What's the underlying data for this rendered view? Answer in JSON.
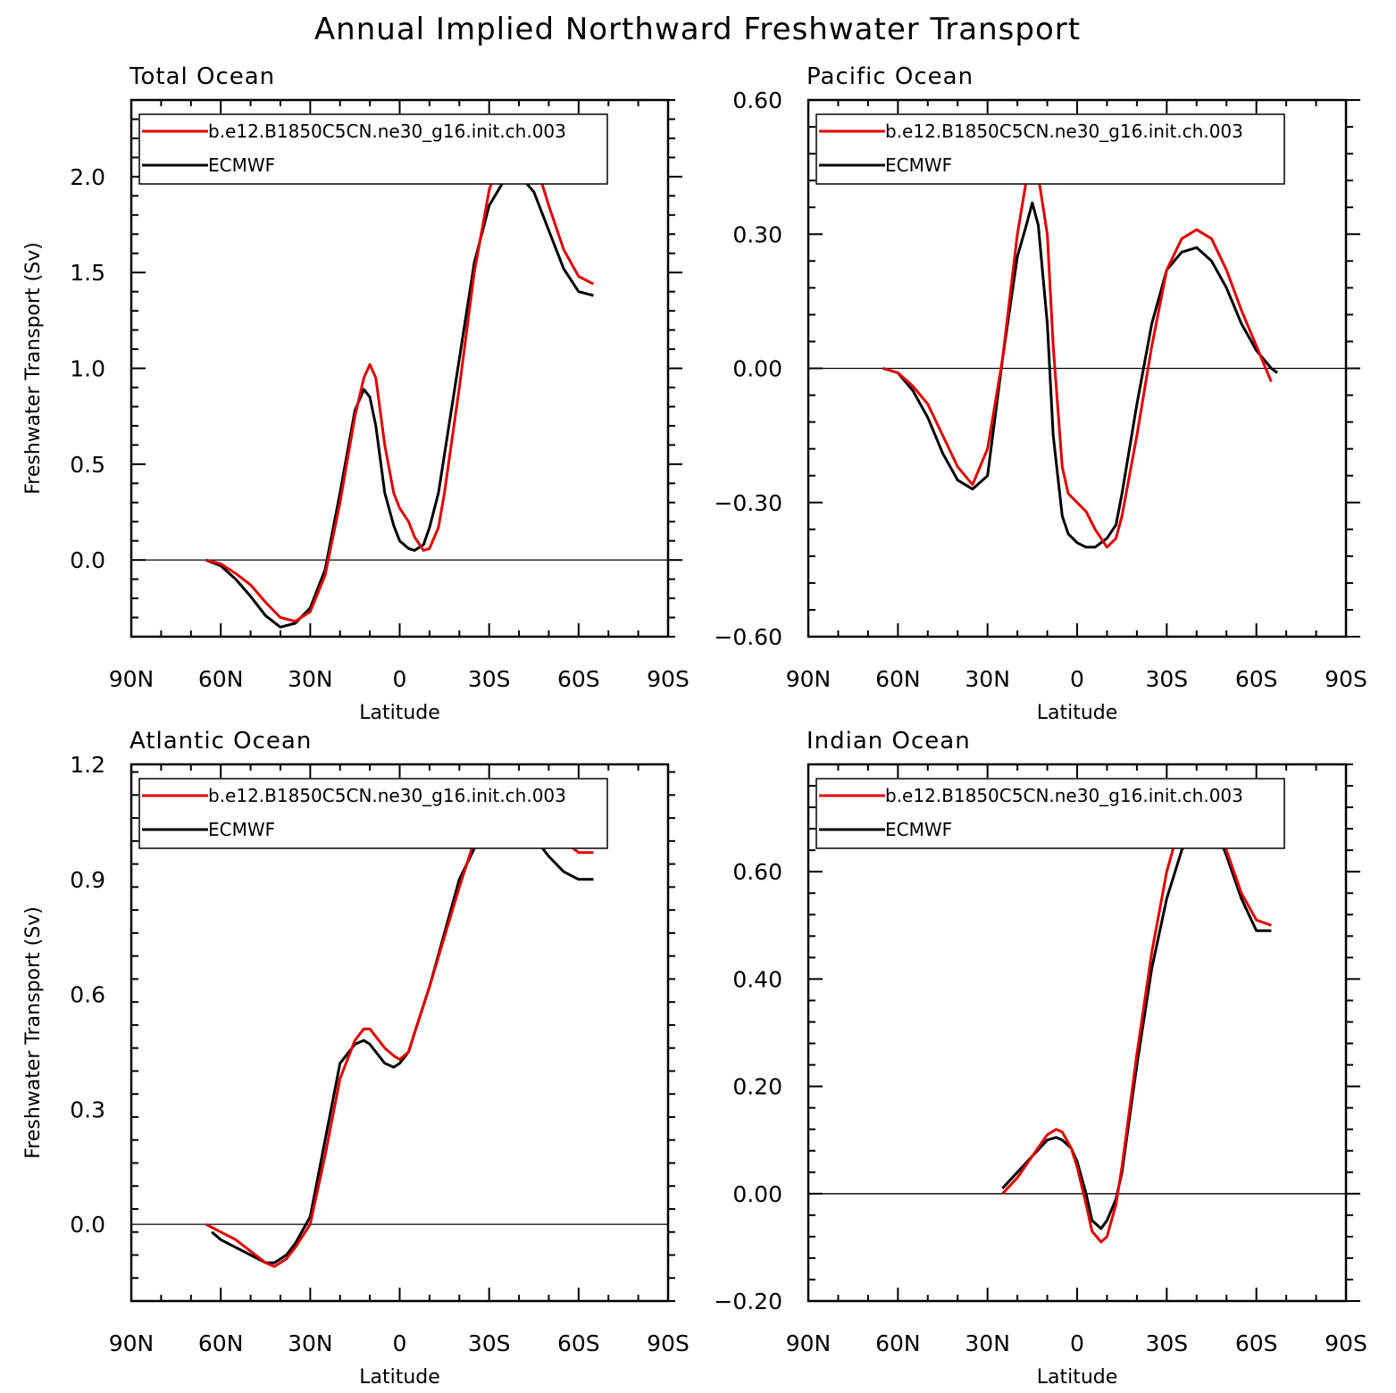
{
  "title": "Annual Implied Northward Freshwater Transport",
  "colors": {
    "model": "#e00000",
    "obs": "#000000"
  },
  "chart_data": [
    {
      "type": "line",
      "title": "Total Ocean",
      "xlabel": "Latitude",
      "ylabel": "Freshwater Transport (Sv)",
      "xlim": [
        90,
        -90
      ],
      "ylim": [
        -0.4,
        2.4
      ],
      "xticks": [
        90,
        60,
        30,
        0,
        -30,
        -60,
        -90
      ],
      "xtick_labels": [
        "90N",
        "60N",
        "30N",
        "0",
        "30S",
        "60S",
        "90S"
      ],
      "yticks": [
        0,
        0.5,
        1,
        1.5,
        2
      ],
      "ytick_labels": [
        "0.0",
        "0.5",
        "1.0",
        "1.5",
        "2.0"
      ],
      "legend_position": "top",
      "series": [
        {
          "name": "b.e12.B1850C5CN.ne30_g16.init.ch.003",
          "color": "#e00000",
          "x": [
            65,
            60,
            55,
            50,
            45,
            40,
            35,
            30,
            25,
            20,
            15,
            12,
            10,
            8,
            5,
            2,
            0,
            -3,
            -5,
            -8,
            -10,
            -13,
            -15,
            -20,
            -25,
            -30,
            -35,
            -40,
            -45,
            -50,
            -55,
            -60,
            -65
          ],
          "y": [
            0,
            -0.02,
            -0.07,
            -0.13,
            -0.22,
            -0.3,
            -0.32,
            -0.27,
            -0.08,
            0.3,
            0.75,
            0.95,
            1.02,
            0.95,
            0.6,
            0.35,
            0.27,
            0.2,
            0.12,
            0.05,
            0.06,
            0.17,
            0.35,
            0.9,
            1.5,
            1.93,
            2.17,
            2.22,
            2.1,
            1.85,
            1.62,
            1.48,
            1.44
          ]
        },
        {
          "name": "ECMWF",
          "color": "#000000",
          "x": [
            65,
            60,
            55,
            50,
            45,
            40,
            35,
            30,
            25,
            20,
            15,
            12,
            10,
            8,
            5,
            2,
            0,
            -3,
            -5,
            -8,
            -10,
            -13,
            -15,
            -20,
            -25,
            -30,
            -35,
            -40,
            -45,
            -50,
            -55,
            -60,
            -65
          ],
          "y": [
            0,
            -0.03,
            -0.1,
            -0.19,
            -0.29,
            -0.35,
            -0.33,
            -0.25,
            -0.05,
            0.35,
            0.78,
            0.89,
            0.85,
            0.7,
            0.35,
            0.18,
            0.1,
            0.06,
            0.05,
            0.08,
            0.17,
            0.35,
            0.55,
            1.05,
            1.55,
            1.85,
            1.98,
            2.01,
            1.92,
            1.72,
            1.52,
            1.4,
            1.38
          ]
        }
      ]
    },
    {
      "type": "line",
      "title": "Pacific Ocean",
      "xlabel": "Latitude",
      "ylabel": "",
      "xlim": [
        90,
        -90
      ],
      "ylim": [
        -0.6,
        0.6
      ],
      "xticks": [
        90,
        60,
        30,
        0,
        -30,
        -60,
        -90
      ],
      "xtick_labels": [
        "90N",
        "60N",
        "30N",
        "0",
        "30S",
        "60S",
        "90S"
      ],
      "yticks": [
        -0.6,
        -0.3,
        0,
        0.3,
        0.6
      ],
      "ytick_labels": [
        "−0.60",
        "−0.30",
        "0.00",
        "0.30",
        "0.60"
      ],
      "legend_position": "top",
      "series": [
        {
          "name": "b.e12.B1850C5CN.ne30_g16.init.ch.003",
          "color": "#e00000",
          "x": [
            65,
            60,
            55,
            50,
            45,
            40,
            35,
            30,
            25,
            20,
            17,
            15,
            13,
            10,
            8,
            5,
            3,
            0,
            -3,
            -6,
            -10,
            -13,
            -15,
            -20,
            -25,
            -30,
            -35,
            -40,
            -45,
            -50,
            -55,
            -60,
            -65
          ],
          "y": [
            0,
            -0.01,
            -0.04,
            -0.08,
            -0.15,
            -0.22,
            -0.26,
            -0.18,
            0.02,
            0.3,
            0.42,
            0.45,
            0.43,
            0.3,
            0.05,
            -0.22,
            -0.28,
            -0.3,
            -0.32,
            -0.36,
            -0.4,
            -0.38,
            -0.33,
            -0.15,
            0.05,
            0.22,
            0.29,
            0.31,
            0.29,
            0.22,
            0.13,
            0.05,
            -0.03
          ]
        },
        {
          "name": "ECMWF",
          "color": "#000000",
          "x": [
            65,
            60,
            55,
            50,
            45,
            40,
            35,
            30,
            25,
            20,
            17,
            15,
            13,
            10,
            8,
            5,
            3,
            0,
            -3,
            -6,
            -10,
            -13,
            -15,
            -20,
            -25,
            -30,
            -35,
            -40,
            -45,
            -50,
            -55,
            -60,
            -65,
            -67
          ],
          "y": [
            0,
            -0.01,
            -0.05,
            -0.11,
            -0.19,
            -0.25,
            -0.27,
            -0.24,
            0.02,
            0.25,
            0.32,
            0.37,
            0.32,
            0.1,
            -0.15,
            -0.33,
            -0.37,
            -0.39,
            -0.4,
            -0.4,
            -0.38,
            -0.35,
            -0.28,
            -0.08,
            0.1,
            0.22,
            0.26,
            0.27,
            0.24,
            0.18,
            0.1,
            0.04,
            0.0,
            -0.01
          ]
        }
      ]
    },
    {
      "type": "line",
      "title": "Atlantic Ocean",
      "xlabel": "Latitude",
      "ylabel": "Freshwater Transport (Sv)",
      "xlim": [
        90,
        -90
      ],
      "ylim": [
        -0.2,
        1.2
      ],
      "xticks": [
        90,
        60,
        30,
        0,
        -30,
        -60,
        -90
      ],
      "xtick_labels": [
        "90N",
        "60N",
        "30N",
        "0",
        "30S",
        "60S",
        "90S"
      ],
      "yticks": [
        0,
        0.3,
        0.6,
        0.9,
        1.2
      ],
      "ytick_labels": [
        "0.0",
        "0.3",
        "0.6",
        "0.9",
        "1.2"
      ],
      "legend_position": "top",
      "series": [
        {
          "name": "b.e12.B1850C5CN.ne30_g16.init.ch.003",
          "color": "#e00000",
          "x": [
            65,
            60,
            55,
            50,
            45,
            42,
            38,
            35,
            30,
            25,
            20,
            15,
            12,
            10,
            8,
            5,
            2,
            0,
            -3,
            -5,
            -10,
            -15,
            -20,
            -25,
            -30,
            -35,
            -40,
            -45,
            -50,
            -55,
            -60,
            -65
          ],
          "y": [
            0,
            -0.02,
            -0.04,
            -0.07,
            -0.1,
            -0.11,
            -0.09,
            -0.06,
            0.0,
            0.18,
            0.38,
            0.48,
            0.51,
            0.51,
            0.49,
            0.46,
            0.44,
            0.43,
            0.45,
            0.5,
            0.62,
            0.75,
            0.88,
            1.0,
            1.08,
            1.14,
            1.16,
            1.12,
            1.06,
            1.0,
            0.97,
            0.97
          ]
        },
        {
          "name": "ECMWF",
          "color": "#000000",
          "x": [
            63,
            60,
            55,
            50,
            45,
            42,
            38,
            35,
            30,
            25,
            20,
            15,
            12,
            10,
            8,
            5,
            2,
            0,
            -3,
            -5,
            -10,
            -15,
            -20,
            -25,
            -30,
            -35,
            -40,
            -45,
            -50,
            -55,
            -60,
            -65
          ],
          "y": [
            -0.02,
            -0.04,
            -0.06,
            -0.08,
            -0.1,
            -0.1,
            -0.08,
            -0.05,
            0.02,
            0.22,
            0.42,
            0.47,
            0.48,
            0.47,
            0.45,
            0.42,
            0.41,
            0.42,
            0.45,
            0.5,
            0.62,
            0.76,
            0.9,
            0.98,
            1.02,
            1.04,
            1.04,
            1.01,
            0.96,
            0.92,
            0.9,
            0.9
          ]
        }
      ]
    },
    {
      "type": "line",
      "title": "Indian Ocean",
      "xlabel": "Latitude",
      "ylabel": "",
      "xlim": [
        90,
        -90
      ],
      "ylim": [
        -0.2,
        0.8
      ],
      "xticks": [
        90,
        60,
        30,
        0,
        -30,
        -60,
        -90
      ],
      "xtick_labels": [
        "90N",
        "60N",
        "30N",
        "0",
        "30S",
        "60S",
        "90S"
      ],
      "yticks": [
        -0.2,
        0,
        0.2,
        0.4,
        0.6
      ],
      "ytick_labels": [
        "−0.20",
        "0.00",
        "0.20",
        "0.40",
        "0.60"
      ],
      "legend_position": "top",
      "series": [
        {
          "name": "b.e12.B1850C5CN.ne30_g16.init.ch.003",
          "color": "#e00000",
          "x": [
            25,
            20,
            15,
            10,
            7,
            5,
            2,
            0,
            -3,
            -5,
            -8,
            -10,
            -13,
            -15,
            -20,
            -25,
            -30,
            -35,
            -40,
            -45,
            -50,
            -55,
            -60,
            -65
          ],
          "y": [
            0.0,
            0.03,
            0.07,
            0.11,
            0.12,
            0.115,
            0.085,
            0.05,
            -0.02,
            -0.07,
            -0.09,
            -0.08,
            -0.02,
            0.05,
            0.26,
            0.45,
            0.6,
            0.7,
            0.75,
            0.72,
            0.64,
            0.56,
            0.51,
            0.5
          ]
        },
        {
          "name": "ECMWF",
          "color": "#000000",
          "x": [
            25,
            20,
            15,
            10,
            7,
            5,
            2,
            0,
            -3,
            -5,
            -8,
            -10,
            -13,
            -15,
            -20,
            -25,
            -30,
            -35,
            -40,
            -45,
            -50,
            -55,
            -60,
            -65
          ],
          "y": [
            0.01,
            0.04,
            0.07,
            0.1,
            0.105,
            0.1,
            0.085,
            0.06,
            0.0,
            -0.05,
            -0.065,
            -0.05,
            -0.01,
            0.04,
            0.24,
            0.42,
            0.55,
            0.64,
            0.7,
            0.7,
            0.63,
            0.55,
            0.49,
            0.49
          ]
        }
      ]
    }
  ]
}
